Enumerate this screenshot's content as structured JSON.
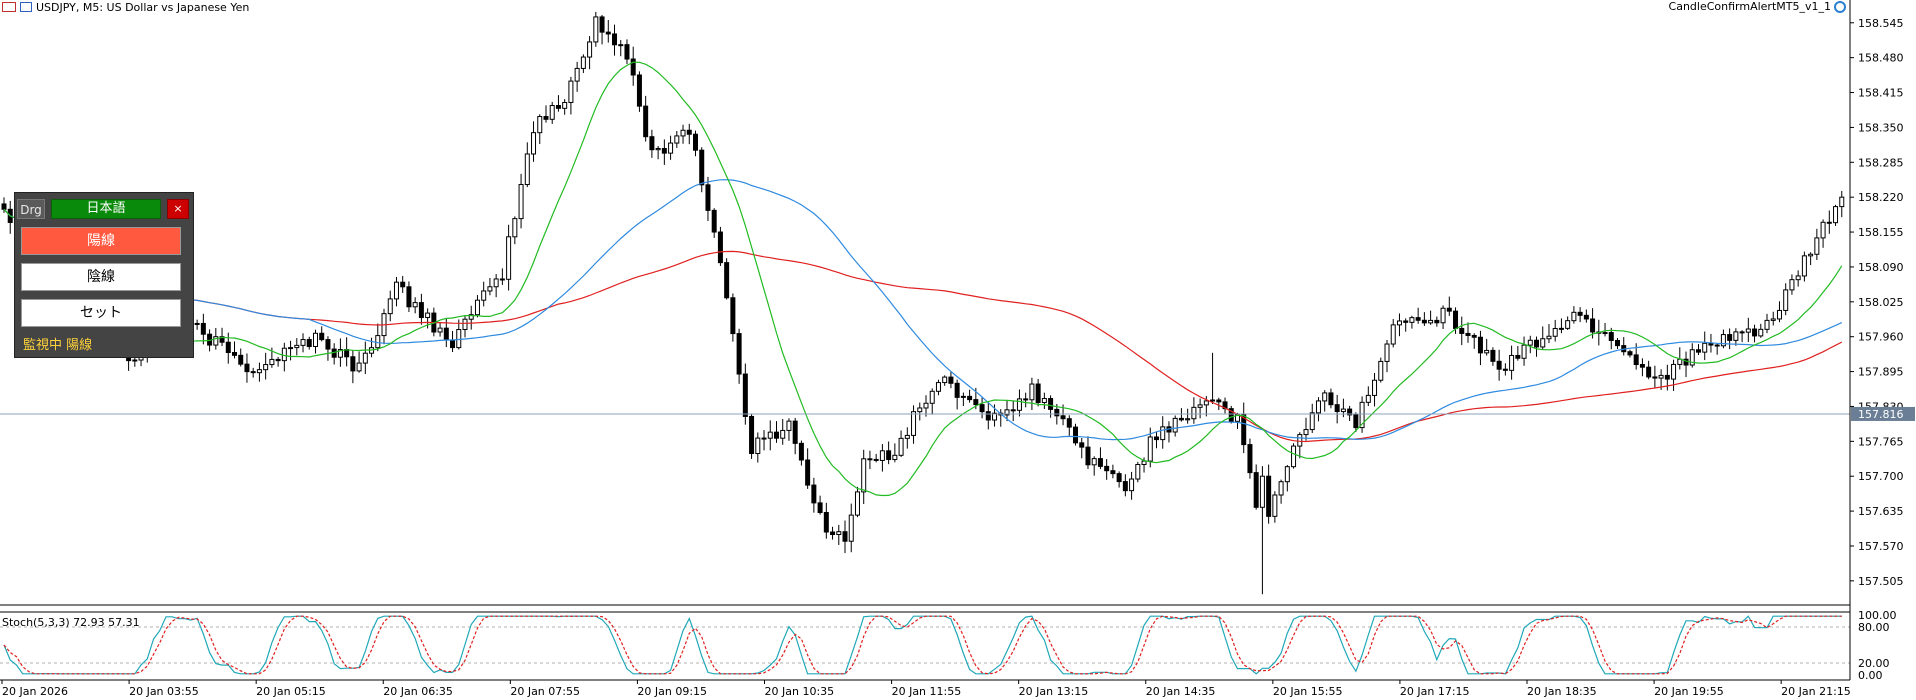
{
  "header": {
    "symbol_text": "USDJPY, M5:  US Dollar vs Japanese Yen",
    "indicator_name": "CandleConfirmAlertMT5_v1_1"
  },
  "panel": {
    "drag_label": "Drg",
    "language_label": "日本語",
    "close_label": "×",
    "bullish_button": "陽線",
    "bearish_button": "陰線",
    "set_button": "セット",
    "status_text": "監視中 陽線",
    "colors": {
      "background": "#444444",
      "language_bg": "#0a8a0a",
      "active_bg": "#ff5a40",
      "close_bg": "#cc0000",
      "status_text": "#ffd23a"
    }
  },
  "price_axis": {
    "labels": [
      "158.545",
      "158.480",
      "158.415",
      "158.350",
      "158.285",
      "158.220",
      "158.155",
      "158.090",
      "158.025",
      "157.960",
      "157.895",
      "157.830",
      "157.765",
      "157.700",
      "157.635",
      "157.570",
      "157.505"
    ],
    "current_price_label": "157.816",
    "current_price": 157.816
  },
  "stochastic": {
    "label": "Stoch(5,3,3) 72.93 57.31",
    "levels": [
      "100.00",
      "80.00",
      "20.00",
      "0.00"
    ],
    "main_color": "#20a8b8",
    "signal_color": "#e02020"
  },
  "time_axis": {
    "labels": [
      "20 Jan 2026",
      "20 Jan 03:55",
      "20 Jan 05:15",
      "20 Jan 06:35",
      "20 Jan 07:55",
      "20 Jan 09:15",
      "20 Jan 10:35",
      "20 Jan 11:55",
      "20 Jan 13:15",
      "20 Jan 14:35",
      "20 Jan 15:55",
      "20 Jan 17:15",
      "20 Jan 18:35",
      "20 Jan 19:55",
      "20 Jan 21:15"
    ]
  },
  "chart_data": {
    "type": "candlestick",
    "symbol": "USDJPY",
    "timeframe": "M5",
    "ylim": [
      157.46,
      158.58
    ],
    "bar_count": 296,
    "ma_colors": {
      "fast": "#22bb22",
      "mid": "#2f8ae0",
      "slow": "#e02020"
    },
    "anchors": [
      [
        0,
        158.2
      ],
      [
        12,
        158.05
      ],
      [
        20,
        157.92
      ],
      [
        30,
        157.98
      ],
      [
        40,
        157.9
      ],
      [
        50,
        157.96
      ],
      [
        57,
        157.9
      ],
      [
        63,
        158.05
      ],
      [
        72,
        157.95
      ],
      [
        80,
        158.08
      ],
      [
        85,
        158.35
      ],
      [
        90,
        158.4
      ],
      [
        95,
        158.55
      ],
      [
        100,
        158.48
      ],
      [
        104,
        158.3
      ],
      [
        110,
        158.35
      ],
      [
        115,
        158.1
      ],
      [
        120,
        157.75
      ],
      [
        126,
        157.8
      ],
      [
        131,
        157.62
      ],
      [
        135,
        157.58
      ],
      [
        138,
        157.72
      ],
      [
        143,
        157.75
      ],
      [
        150,
        157.88
      ],
      [
        154,
        157.85
      ],
      [
        160,
        157.8
      ],
      [
        165,
        157.86
      ],
      [
        170,
        157.8
      ],
      [
        175,
        157.72
      ],
      [
        180,
        157.68
      ],
      [
        185,
        157.78
      ],
      [
        190,
        157.82
      ],
      [
        194,
        157.85
      ],
      [
        198,
        157.8
      ],
      [
        202,
        157.6
      ],
      [
        207,
        157.75
      ],
      [
        212,
        157.85
      ],
      [
        217,
        157.8
      ],
      [
        224,
        158.0
      ],
      [
        232,
        158.0
      ],
      [
        240,
        157.9
      ],
      [
        246,
        157.95
      ],
      [
        252,
        158.0
      ],
      [
        258,
        157.96
      ],
      [
        265,
        157.88
      ],
      [
        270,
        157.92
      ],
      [
        278,
        157.96
      ],
      [
        284,
        157.99
      ],
      [
        290,
        158.12
      ],
      [
        295,
        158.22
      ]
    ]
  }
}
